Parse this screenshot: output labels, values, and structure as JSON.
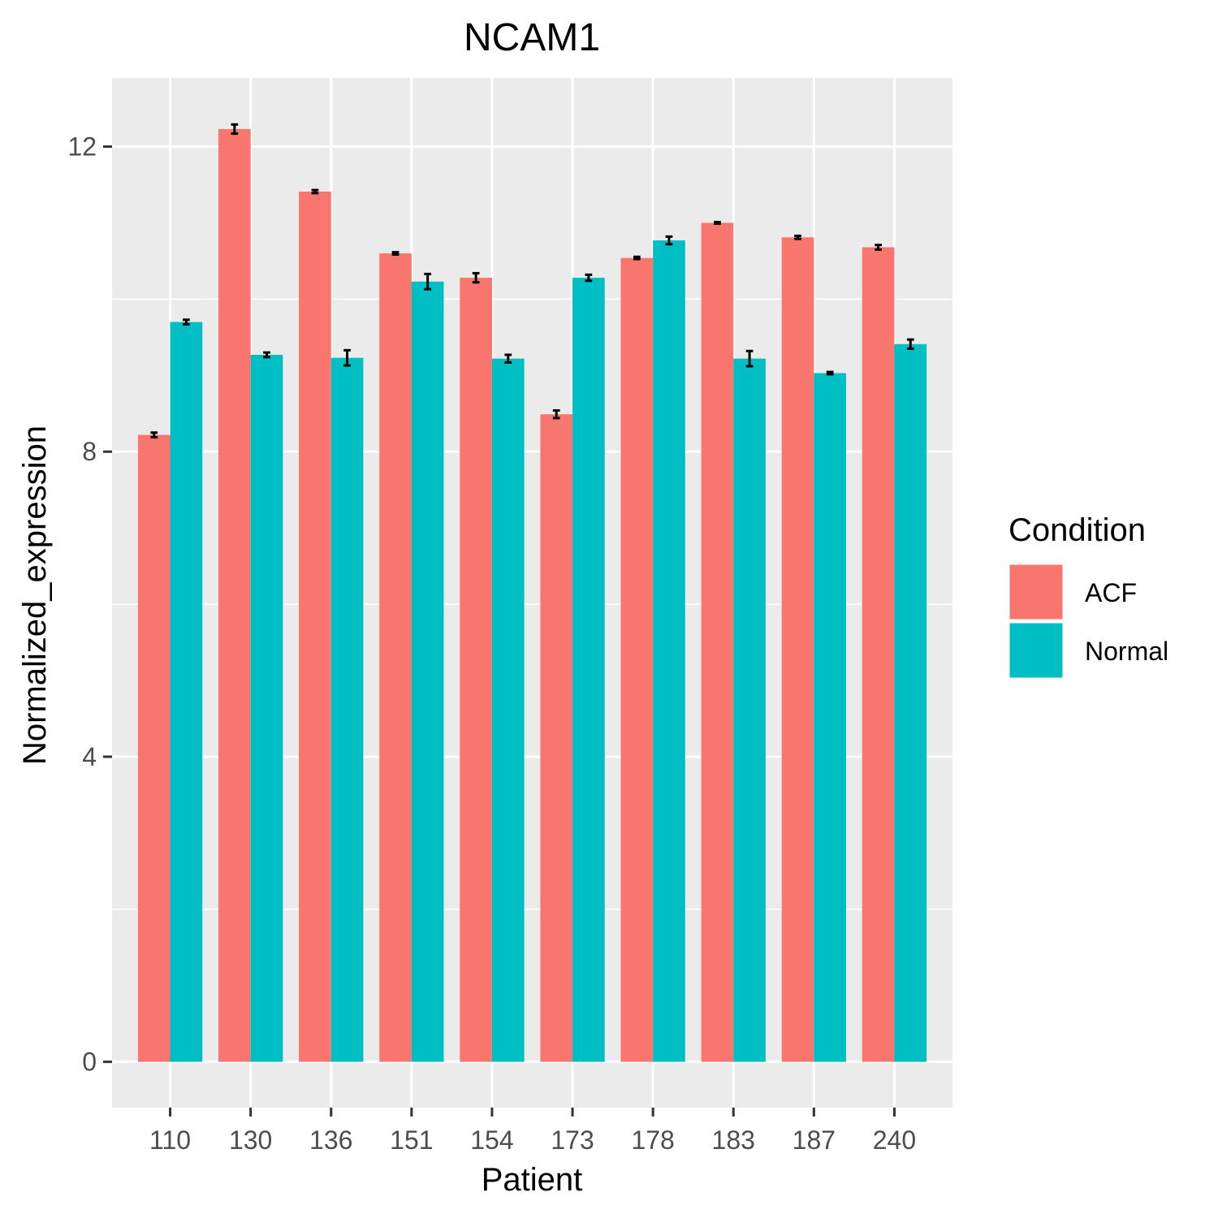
{
  "chart_data": {
    "type": "bar",
    "title": "NCAM1",
    "xlabel": "Patient",
    "ylabel": "Normalized_expression",
    "categories": [
      "110",
      "130",
      "136",
      "151",
      "154",
      "173",
      "178",
      "183",
      "187",
      "240"
    ],
    "series": [
      {
        "name": "ACF",
        "color": "#F8766D",
        "values": [
          8.22,
          12.23,
          11.41,
          10.6,
          10.28,
          8.49,
          10.54,
          11.0,
          10.81,
          10.68
        ],
        "errors": [
          0.03,
          0.06,
          0.02,
          0.015,
          0.06,
          0.05,
          0.015,
          0.01,
          0.02,
          0.03
        ]
      },
      {
        "name": "Normal",
        "color": "#00BFC4",
        "values": [
          9.7,
          9.27,
          9.23,
          10.23,
          9.22,
          10.28,
          10.77,
          9.22,
          9.03,
          9.41
        ],
        "errors": [
          0.03,
          0.03,
          0.1,
          0.1,
          0.05,
          0.04,
          0.05,
          0.1,
          0.015,
          0.06
        ]
      }
    ],
    "ylim": [
      -0.6,
      12.9
    ],
    "yticks": [
      0,
      4,
      8,
      12
    ],
    "legend": {
      "title": "Condition",
      "position": "right"
    },
    "grid": true,
    "panel_background": "#EBEBEB"
  }
}
